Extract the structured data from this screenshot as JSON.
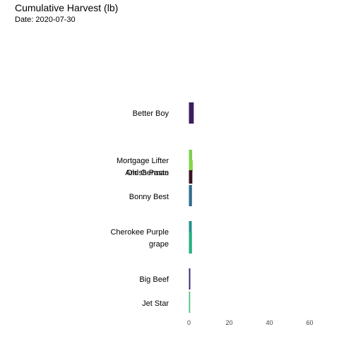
{
  "chart_data": {
    "type": "bar",
    "orientation": "horizontal",
    "title": "Cumulative Harvest (lb)",
    "subtitle": "Date: 2020-07-30",
    "xlabel": "",
    "ylabel": "",
    "xlim": [
      0,
      65
    ],
    "x_ticks": [
      0,
      20,
      40,
      60
    ],
    "grid": false,
    "legend": "none",
    "bars": [
      {
        "label": "Better Boy",
        "value": 2.4,
        "color": "#3d1d5e"
      },
      {
        "label": "Mortgage Lifter",
        "value": 1.6,
        "color": "#7ad151"
      },
      {
        "label": "Old German",
        "value": 1.9,
        "color": "#86d549"
      },
      {
        "label": "Amish Paste",
        "value": 1.7,
        "color": "#3b1322"
      },
      {
        "label": "Bonny Best",
        "value": 1.5,
        "color": "#2e6c8e"
      },
      {
        "label": "Cherokee Purple",
        "value": 1.4,
        "color": "#21918c"
      },
      {
        "label": "grape",
        "value": 1.5,
        "color": "#29af7f"
      },
      {
        "label": "Big Beef",
        "value": 0.7,
        "color": "#3e2a77"
      },
      {
        "label": "Jet Star",
        "value": 0.6,
        "color": "#44bf70"
      }
    ]
  }
}
